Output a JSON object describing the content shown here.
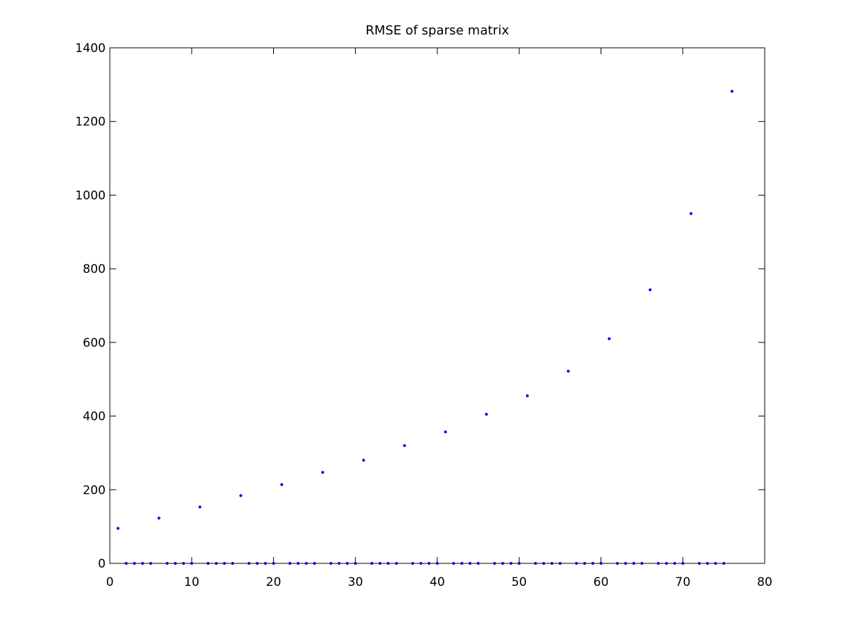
{
  "chart_data": {
    "type": "scatter",
    "title": "RMSE of sparse matrix",
    "xlabel": "",
    "ylabel": "",
    "xlim": [
      0,
      80
    ],
    "ylim": [
      0,
      1400
    ],
    "xticks": [
      "0",
      "10",
      "20",
      "30",
      "40",
      "50",
      "60",
      "70",
      "80"
    ],
    "yticks": [
      "0",
      "200",
      "400",
      "600",
      "800",
      "1000",
      "1200",
      "1400"
    ],
    "grid": false,
    "legend": "none",
    "marker": "point",
    "color": "#0000ff",
    "series": [
      {
        "x": [
          1,
          2,
          3,
          4,
          5,
          6,
          7,
          8,
          9,
          10,
          11,
          12,
          13,
          14,
          15,
          16,
          17,
          18,
          19,
          20,
          21,
          22,
          23,
          24,
          25,
          26,
          27,
          28,
          29,
          30,
          31,
          32,
          33,
          34,
          35,
          36,
          37,
          38,
          39,
          40,
          41,
          42,
          43,
          44,
          45,
          46,
          47,
          48,
          49,
          50,
          51,
          52,
          53,
          54,
          55,
          56,
          57,
          58,
          59,
          60,
          61,
          62,
          63,
          64,
          65,
          66,
          67,
          68,
          69,
          70,
          71,
          72,
          73,
          74,
          75,
          76
        ],
        "y": [
          95,
          0,
          0,
          0,
          0,
          123,
          0,
          0,
          0,
          0,
          153,
          0,
          0,
          0,
          0,
          184,
          0,
          0,
          0,
          0,
          214,
          0,
          0,
          0,
          0,
          247,
          0,
          0,
          0,
          0,
          280,
          0,
          0,
          0,
          0,
          320,
          0,
          0,
          0,
          0,
          357,
          0,
          0,
          0,
          0,
          405,
          0,
          0,
          0,
          0,
          455,
          0,
          0,
          0,
          0,
          522,
          0,
          0,
          0,
          0,
          610,
          0,
          0,
          0,
          0,
          743,
          0,
          0,
          0,
          0,
          950,
          0,
          0,
          0,
          0,
          1282
        ]
      }
    ]
  }
}
